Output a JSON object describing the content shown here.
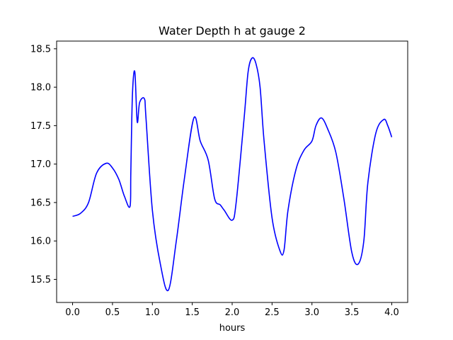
{
  "chart_data": {
    "type": "line",
    "title": "Water Depth h at gauge 2",
    "xlabel": "hours",
    "ylabel": "",
    "xlim": [
      -0.2,
      4.2
    ],
    "ylim": [
      15.2,
      18.6
    ],
    "x_ticks": [
      0.0,
      0.5,
      1.0,
      1.5,
      2.0,
      2.5,
      3.0,
      3.5,
      4.0
    ],
    "x_tick_labels": [
      "0.0",
      "0.5",
      "1.0",
      "1.5",
      "2.0",
      "2.5",
      "3.0",
      "3.5",
      "4.0"
    ],
    "y_ticks": [
      15.5,
      16.0,
      16.5,
      17.0,
      17.5,
      18.0,
      18.5
    ],
    "y_tick_labels": [
      "15.5",
      "16.0",
      "16.5",
      "17.0",
      "17.5",
      "18.0",
      "18.5"
    ],
    "grid": false,
    "series": [
      {
        "color": "#0000ff",
        "x": [
          0.0,
          0.1,
          0.2,
          0.3,
          0.42,
          0.5,
          0.58,
          0.65,
          0.72,
          0.73,
          0.75,
          0.78,
          0.81,
          0.84,
          0.9,
          0.92,
          1.0,
          1.1,
          1.2,
          1.3,
          1.4,
          1.52,
          1.6,
          1.7,
          1.78,
          1.85,
          1.9,
          2.0,
          2.05,
          2.15,
          2.2,
          2.25,
          2.3,
          2.35,
          2.4,
          2.5,
          2.6,
          2.65,
          2.7,
          2.8,
          2.9,
          3.0,
          3.05,
          3.12,
          3.2,
          3.3,
          3.4,
          3.5,
          3.58,
          3.65,
          3.7,
          3.8,
          3.9,
          3.95,
          4.0
        ],
        "y": [
          16.32,
          16.36,
          16.5,
          16.88,
          17.01,
          16.95,
          16.8,
          16.58,
          16.45,
          16.9,
          17.9,
          18.2,
          17.55,
          17.8,
          17.85,
          17.6,
          16.4,
          15.7,
          15.36,
          16.0,
          16.8,
          17.6,
          17.3,
          17.05,
          16.55,
          16.47,
          16.4,
          16.27,
          16.5,
          17.6,
          18.2,
          18.38,
          18.3,
          18.0,
          17.3,
          16.3,
          15.87,
          15.88,
          16.4,
          16.93,
          17.18,
          17.3,
          17.5,
          17.6,
          17.45,
          17.15,
          16.55,
          15.85,
          15.7,
          16.0,
          16.75,
          17.4,
          17.58,
          17.5,
          17.35
        ]
      }
    ]
  }
}
